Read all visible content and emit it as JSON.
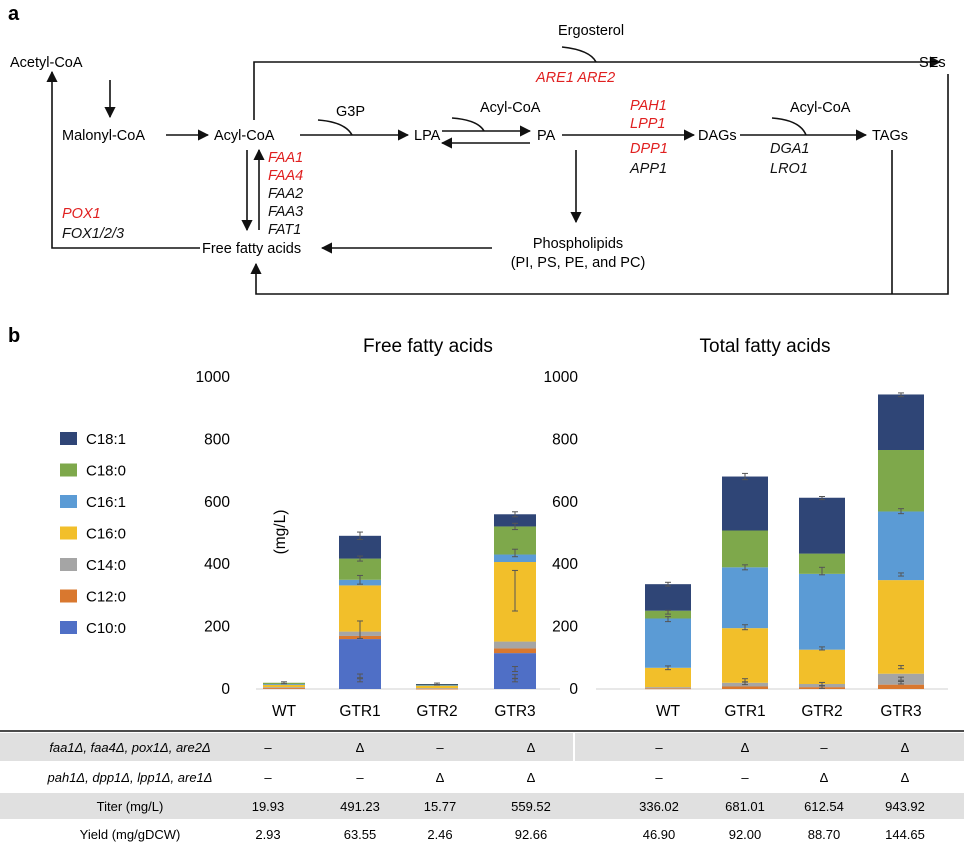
{
  "panels": {
    "a": "a",
    "b": "b"
  },
  "pathway": {
    "nodes": {
      "acetyl_coa": "Acetyl-CoA",
      "malonyl_coa": "Malonyl-CoA",
      "acyl_coa": "Acyl-CoA",
      "g3p": "G3P",
      "lpa": "LPA",
      "acyl_coa_2": "Acyl-CoA",
      "pa": "PA",
      "dags": "DAGs",
      "acyl_coa_3": "Acyl-CoA",
      "tags": "TAGs",
      "ergosterol": "Ergosterol",
      "ses": "SEs",
      "ffa": "Free fatty acids",
      "phospholipids": "Phospholipids",
      "phospholipids_sub": "(PI, PS, PE, and PC)"
    },
    "genes": {
      "are": "ARE1 ARE2",
      "faa1": "FAA1",
      "faa4": "FAA4",
      "faa2": "FAA2",
      "faa3": "FAA3",
      "fat1": "FAT1",
      "pah1": "PAH1",
      "lpp1": "LPP1",
      "dpp1": "DPP1",
      "app1": "APP1",
      "dga1": "DGA1",
      "lro1": "LRO1",
      "pox1": "POX1",
      "fox": "FOX1/2/3"
    },
    "colors": {
      "deleted_gene": "#e02020",
      "gene": "#111111"
    }
  },
  "chart_data": [
    {
      "type": "bar",
      "stacked": true,
      "title": "Free fatty acids",
      "ylabel": "(mg/L)",
      "ylim": [
        0,
        1000
      ],
      "yticks": [
        "0",
        "200",
        "400",
        "600",
        "800",
        "1000"
      ],
      "categories": [
        "WT",
        "GTR1",
        "GTR2",
        "GTR3"
      ],
      "series": [
        {
          "name": "C10:0",
          "color": "#4f6fc6",
          "values": [
            0,
            160,
            0,
            115
          ]
        },
        {
          "name": "C12:0",
          "color": "#d9782f",
          "values": [
            3,
            10,
            1,
            15
          ]
        },
        {
          "name": "C14:0",
          "color": "#a5a5a5",
          "values": [
            3,
            14,
            2,
            22
          ]
        },
        {
          "name": "C16:0",
          "color": "#f2bf2a",
          "values": [
            8,
            148,
            8,
            255
          ]
        },
        {
          "name": "C16:1",
          "color": "#5b9bd5",
          "values": [
            2,
            18,
            2,
            24
          ]
        },
        {
          "name": "C18:0",
          "color": "#7ea84b",
          "values": [
            4,
            68,
            2,
            90
          ]
        },
        {
          "name": "C18:1",
          "color": "#2f4576",
          "values": [
            0,
            73,
            1,
            39
          ]
        }
      ],
      "error_bars": [
        {
          "category": "WT",
          "y": 20,
          "err": 3
        },
        {
          "category": "GTR1",
          "y": 491,
          "err": 12
        },
        {
          "category": "GTR1",
          "y": 418,
          "err": 8
        },
        {
          "category": "GTR1",
          "y": 350,
          "err": 14
        },
        {
          "category": "GTR1",
          "y": 190,
          "err": 28
        },
        {
          "category": "GTR1",
          "y": 42,
          "err": 6
        },
        {
          "category": "GTR1",
          "y": 28,
          "err": 5
        },
        {
          "category": "GTR2",
          "y": 16,
          "err": 3
        },
        {
          "category": "GTR3",
          "y": 560,
          "err": 8
        },
        {
          "category": "GTR3",
          "y": 521,
          "err": 10
        },
        {
          "category": "GTR3",
          "y": 436,
          "err": 12
        },
        {
          "category": "GTR3",
          "y": 315,
          "err": 65
        },
        {
          "category": "GTR3",
          "y": 64,
          "err": 8
        },
        {
          "category": "GTR3",
          "y": 40,
          "err": 6
        },
        {
          "category": "GTR3",
          "y": 28,
          "err": 5
        }
      ]
    },
    {
      "type": "bar",
      "stacked": true,
      "title": "Total fatty acids",
      "ylabel": "",
      "ylim": [
        0,
        1000
      ],
      "yticks": [
        "0",
        "200",
        "400",
        "600",
        "800",
        "1000"
      ],
      "categories": [
        "WT",
        "GTR1",
        "GTR2",
        "GTR3"
      ],
      "series": [
        {
          "name": "C10:0",
          "color": "#4f6fc6",
          "values": [
            0,
            0,
            0,
            0
          ]
        },
        {
          "name": "C12:0",
          "color": "#d9782f",
          "values": [
            2,
            8,
            6,
            14
          ]
        },
        {
          "name": "C14:0",
          "color": "#a5a5a5",
          "values": [
            4,
            12,
            10,
            35
          ]
        },
        {
          "name": "C16:0",
          "color": "#f2bf2a",
          "values": [
            62,
            175,
            110,
            300
          ]
        },
        {
          "name": "C16:1",
          "color": "#5b9bd5",
          "values": [
            158,
            195,
            243,
            220
          ]
        },
        {
          "name": "C18:0",
          "color": "#7ea84b",
          "values": [
            25,
            118,
            65,
            197
          ]
        },
        {
          "name": "C18:1",
          "color": "#2f4576",
          "values": [
            85,
            173,
            179,
            178
          ]
        }
      ],
      "error_bars": [
        {
          "category": "WT",
          "y": 336,
          "err": 6
        },
        {
          "category": "WT",
          "y": 246,
          "err": 6
        },
        {
          "category": "WT",
          "y": 224,
          "err": 8
        },
        {
          "category": "WT",
          "y": 68,
          "err": 6
        },
        {
          "category": "GTR1",
          "y": 681,
          "err": 10
        },
        {
          "category": "GTR1",
          "y": 390,
          "err": 8
        },
        {
          "category": "GTR1",
          "y": 198,
          "err": 8
        },
        {
          "category": "GTR1",
          "y": 28,
          "err": 5
        },
        {
          "category": "GTR1",
          "y": 18,
          "err": 4
        },
        {
          "category": "GTR2",
          "y": 612,
          "err": 5
        },
        {
          "category": "GTR2",
          "y": 378,
          "err": 12
        },
        {
          "category": "GTR2",
          "y": 130,
          "err": 5
        },
        {
          "category": "GTR2",
          "y": 16,
          "err": 5
        },
        {
          "category": "GTR2",
          "y": 6,
          "err": 4
        },
        {
          "category": "GTR3",
          "y": 943,
          "err": 6
        },
        {
          "category": "GTR3",
          "y": 570,
          "err": 8
        },
        {
          "category": "GTR3",
          "y": 367,
          "err": 5
        },
        {
          "category": "GTR3",
          "y": 70,
          "err": 5
        },
        {
          "category": "GTR3",
          "y": 33,
          "err": 5
        },
        {
          "category": "GTR3",
          "y": 20,
          "err": 4
        }
      ]
    }
  ],
  "legend": [
    {
      "name": "C18:1",
      "color": "#2f4576"
    },
    {
      "name": "C18:0",
      "color": "#7ea84b"
    },
    {
      "name": "C16:1",
      "color": "#5b9bd5"
    },
    {
      "name": "C16:0",
      "color": "#f2bf2a"
    },
    {
      "name": "C14:0",
      "color": "#a5a5a5"
    },
    {
      "name": "C12:0",
      "color": "#d9782f"
    },
    {
      "name": "C10:0",
      "color": "#4f6fc6"
    }
  ],
  "table": {
    "rows": [
      {
        "label": "faa1Δ, faa4Δ, pox1Δ, are2Δ",
        "italic": true,
        "shaded": true,
        "values": [
          "–",
          "Δ",
          "–",
          "Δ",
          "–",
          "Δ",
          "–",
          "Δ"
        ]
      },
      {
        "label": "pah1Δ, dpp1Δ, lpp1Δ, are1Δ",
        "italic": true,
        "shaded": false,
        "values": [
          "–",
          "–",
          "Δ",
          "Δ",
          "–",
          "–",
          "Δ",
          "Δ"
        ]
      },
      {
        "label": "Titer (mg/L)",
        "italic": false,
        "shaded": true,
        "values": [
          "19.93",
          "491.23",
          "15.77",
          "559.52",
          "336.02",
          "681.01",
          "612.54",
          "943.92"
        ]
      },
      {
        "label": "Yield (mg/gDCW)",
        "italic": false,
        "shaded": false,
        "values": [
          "2.93",
          "63.55",
          "2.46",
          "92.66",
          "46.90",
          "92.00",
          "88.70",
          "144.65"
        ]
      }
    ]
  }
}
